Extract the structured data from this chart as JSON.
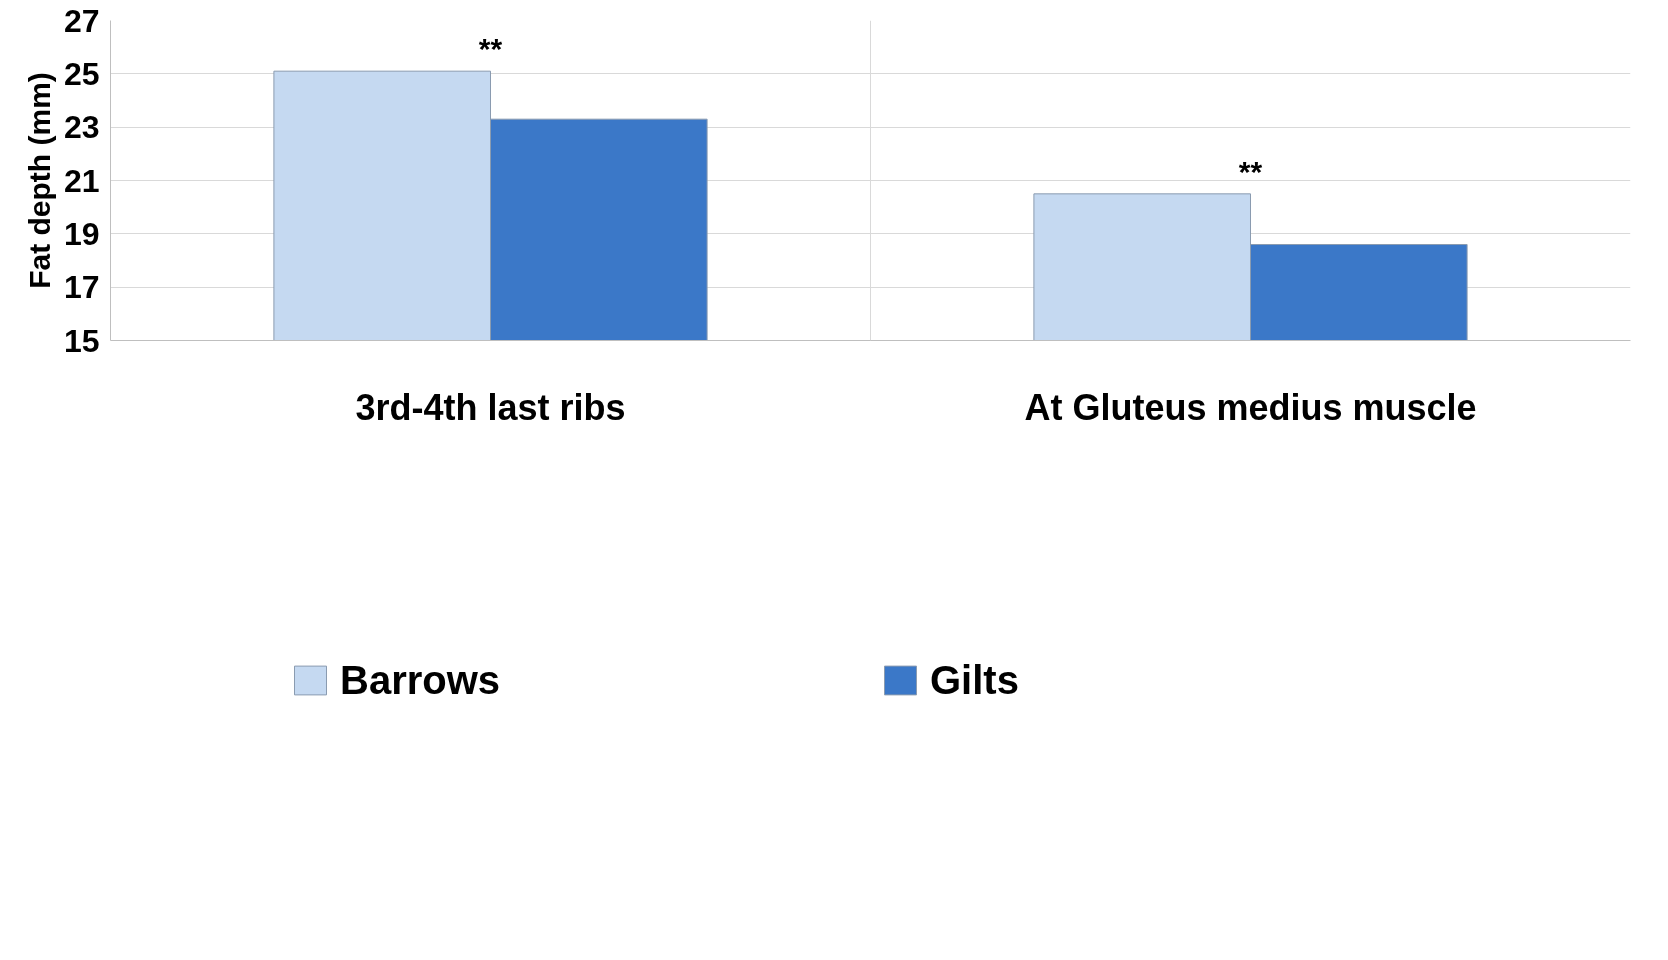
{
  "chart_data": {
    "type": "bar",
    "ylabel": "Fat depth (mm)",
    "categories": [
      "3rd-4th last ribs",
      "At Gluteus medius muscle"
    ],
    "series": [
      {
        "name": "Barrows",
        "color": "#c5d9f1",
        "values": [
          25.1,
          20.5
        ]
      },
      {
        "name": "Gilts",
        "color": "#3b78c8",
        "values": [
          23.3,
          18.6
        ]
      }
    ],
    "ylim": [
      15,
      27
    ],
    "yticks": [
      15,
      17,
      19,
      21,
      23,
      25,
      27
    ],
    "grid": true,
    "legend": "bottom",
    "annotations": [
      "**",
      "**"
    ]
  }
}
